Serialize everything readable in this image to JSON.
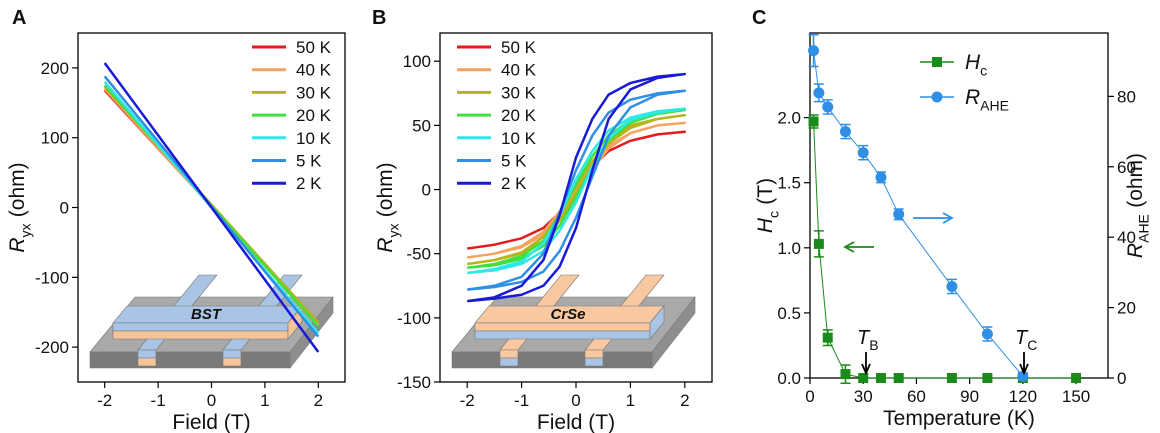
{
  "chart_data": [
    {
      "type": "line",
      "panel_label": "A",
      "x_label": "Field (T)",
      "y_label": {
        "main": "R",
        "sub": "yx",
        "unit": "(ohm)"
      },
      "inset_label": "BST",
      "x": [
        -2,
        2
      ],
      "xlim": [
        -2.5,
        2.5
      ],
      "xticks": [
        -2,
        -1,
        0,
        1,
        2
      ],
      "ylim": [
        -250,
        250
      ],
      "yticks": [
        -200,
        -100,
        0,
        100,
        200
      ],
      "legend": "upper right",
      "series": [
        {
          "name": "50 K",
          "color": "#e41a1c",
          "values": [
            168,
            -165
          ]
        },
        {
          "name": "40 K",
          "color": "#f4a460",
          "values": [
            170,
            -168
          ]
        },
        {
          "name": "30 K",
          "color": "#b5b51a",
          "values": [
            173,
            -165
          ]
        },
        {
          "name": "20 K",
          "color": "#3fe03f",
          "values": [
            175,
            -170
          ]
        },
        {
          "name": "10 K",
          "color": "#2ee8e8",
          "values": [
            180,
            -180
          ]
        },
        {
          "name": "5 K",
          "color": "#2f8fe6",
          "values": [
            188,
            -185
          ]
        },
        {
          "name": "2 K",
          "color": "#1a1ad6",
          "values": [
            207,
            -207
          ]
        }
      ]
    },
    {
      "type": "line",
      "panel_label": "B",
      "x_label": "Field (T)",
      "y_label": {
        "main": "R",
        "sub": "yx",
        "unit": "(ohm)"
      },
      "inset_label": "CrSe",
      "x": [
        -2,
        -1.5,
        -1,
        -0.6,
        -0.3,
        0,
        0.3,
        0.6,
        1,
        1.5,
        2,
        1.5,
        1,
        0.6,
        0.3,
        0,
        -0.3,
        -0.6,
        -1,
        -1.5,
        -2
      ],
      "xlim": [
        -2.5,
        2.5
      ],
      "xticks": [
        -2,
        -1,
        0,
        1,
        2
      ],
      "ylim": [
        -150,
        122
      ],
      "yticks": [
        -150,
        -100,
        -50,
        0,
        50,
        100
      ],
      "legend": "upper left",
      "series": [
        {
          "name": "50 K",
          "color": "#e41a1c",
          "values": [
            -46,
            -43,
            -38,
            -30,
            -18,
            0,
            18,
            30,
            38,
            43,
            45,
            43,
            38,
            30,
            18,
            0,
            -18,
            -30,
            -38,
            -43,
            -46
          ]
        },
        {
          "name": "40 K",
          "color": "#f4a460",
          "values": [
            -53,
            -50,
            -45,
            -35,
            -20,
            -1,
            16,
            32,
            44,
            50,
            52,
            50,
            44,
            34,
            18,
            1,
            -17,
            -33,
            -44,
            -50,
            -53
          ]
        },
        {
          "name": "30 K",
          "color": "#b5b51a",
          "values": [
            -58,
            -55,
            -50,
            -40,
            -24,
            -3,
            18,
            36,
            48,
            55,
            58,
            55,
            50,
            38,
            22,
            2,
            -19,
            -37,
            -49,
            -55,
            -58
          ]
        },
        {
          "name": "20 K",
          "color": "#3fe03f",
          "values": [
            -61,
            -59,
            -54,
            -44,
            -28,
            -6,
            18,
            38,
            52,
            59,
            62,
            60,
            54,
            42,
            26,
            4,
            -20,
            -40,
            -52,
            -58,
            -61
          ]
        },
        {
          "name": "10 K",
          "color": "#2ee8e8",
          "values": [
            -65,
            -63,
            -58,
            -48,
            -32,
            -10,
            18,
            40,
            54,
            60,
            63,
            61,
            56,
            46,
            30,
            8,
            -20,
            -42,
            -56,
            -62,
            -65
          ]
        },
        {
          "name": "5 K",
          "color": "#2f8fe6",
          "values": [
            -78,
            -76,
            -72,
            -64,
            -48,
            -22,
            10,
            42,
            64,
            74,
            77,
            75,
            70,
            60,
            42,
            15,
            -18,
            -50,
            -68,
            -75,
            -78
          ]
        },
        {
          "name": "2 K",
          "color": "#1a1ad6",
          "values": [
            -87,
            -85,
            -82,
            -75,
            -60,
            -30,
            15,
            55,
            78,
            87,
            90,
            88,
            83,
            74,
            55,
            25,
            -20,
            -55,
            -75,
            -84,
            -87
          ]
        }
      ]
    },
    {
      "type": "line",
      "panel_label": "C",
      "x_label": "Temperature (K)",
      "y_label": {
        "main": "H",
        "sub": "c",
        "unit": "(T)"
      },
      "y2_label": {
        "main": "R",
        "sub": "AHE",
        "unit": "(ohm)"
      },
      "xlim": [
        0,
        168
      ],
      "xticks": [
        0,
        30,
        60,
        90,
        120,
        150
      ],
      "ylim": [
        0,
        2.65
      ],
      "yticks": [
        {
          "value": 0,
          "label": "0.0"
        },
        0.5,
        {
          "value": 1,
          "label": "1.0"
        },
        1.5,
        {
          "value": 2,
          "label": "2.0"
        }
      ],
      "y2lim": [
        0,
        98
      ],
      "y2ticks": [
        0,
        20,
        40,
        60,
        80
      ],
      "legend": "upper right",
      "annotations": [
        {
          "main": "T",
          "sub": "B"
        },
        {
          "main": "T",
          "sub": "C"
        }
      ],
      "series": [
        {
          "name": {
            "main": "H",
            "sub": "c"
          },
          "color": "#1a8a1a",
          "marker": "square",
          "x": [
            2,
            5,
            10,
            20,
            30,
            40,
            50,
            80,
            100,
            120,
            150
          ],
          "values": [
            1.97,
            1.03,
            0.31,
            0.03,
            0,
            0,
            0,
            0,
            0,
            0,
            0
          ],
          "errors": [
            0.05,
            0.1,
            0.06,
            0.07,
            0,
            0,
            0,
            0,
            0,
            0,
            0
          ]
        },
        {
          "name": {
            "main": "R",
            "sub": "AHE"
          },
          "color": "#2f8fe6",
          "marker": "circle",
          "axis": "y2",
          "x": [
            2,
            5,
            10,
            20,
            30,
            40,
            50,
            80,
            100,
            120
          ],
          "values": [
            93,
            81,
            77,
            70,
            64,
            57,
            46.5,
            26,
            12.5,
            0.5
          ],
          "errors": [
            4.5,
            2.5,
            2,
            2,
            2,
            1.5,
            1.5,
            2,
            2,
            1
          ]
        }
      ]
    }
  ]
}
